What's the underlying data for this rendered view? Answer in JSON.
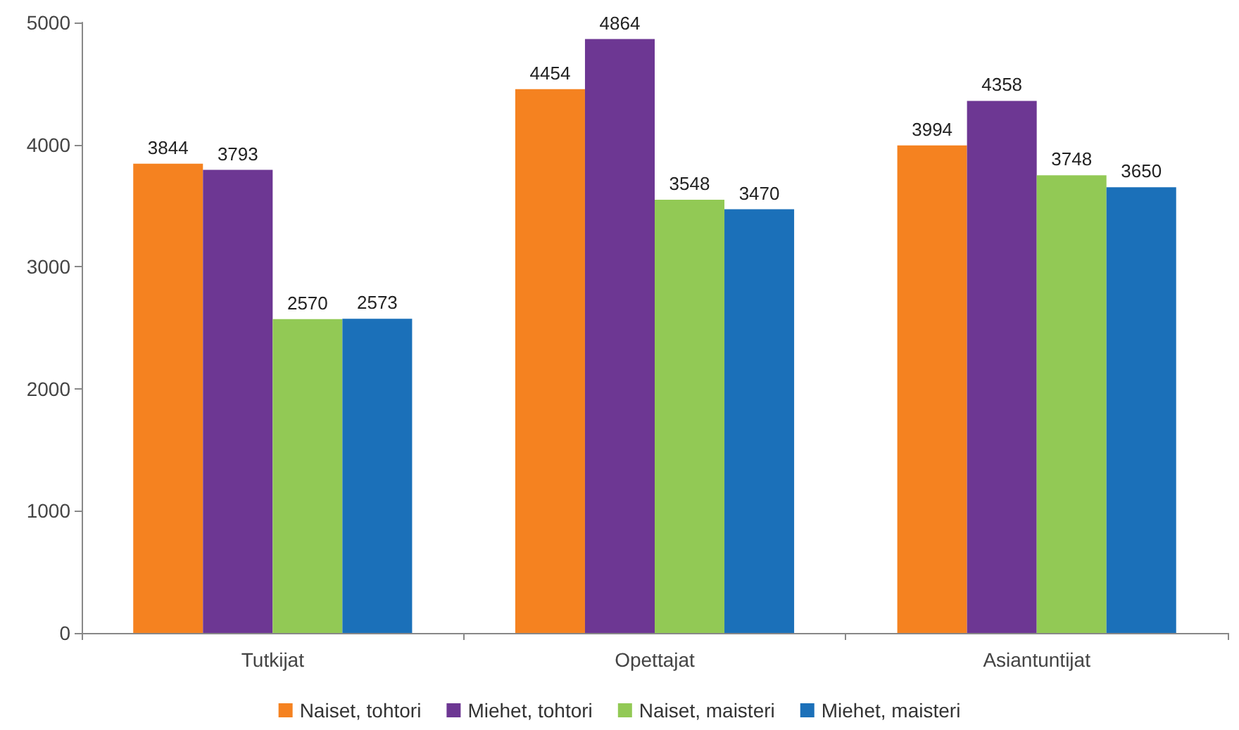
{
  "chart_data": {
    "type": "bar",
    "categories": [
      "Tutkijat",
      "Opettajat",
      "Asiantuntijat"
    ],
    "series": [
      {
        "name": "Naiset, tohtori",
        "color": "#f58220",
        "values": [
          3844,
          4454,
          3994
        ]
      },
      {
        "name": "Miehet, tohtori",
        "color": "#6d3793",
        "values": [
          3793,
          4864,
          4358
        ]
      },
      {
        "name": "Naiset, maisteri",
        "color": "#92c955",
        "values": [
          2570,
          3548,
          3748
        ]
      },
      {
        "name": "Miehet, maisteri",
        "color": "#1b70b9",
        "values": [
          2573,
          3470,
          3650
        ]
      }
    ],
    "ylim": [
      0,
      5000
    ],
    "yticks": [
      0,
      1000,
      2000,
      3000,
      4000,
      5000
    ],
    "grid": false,
    "legend": "bottom",
    "data_labels": true
  }
}
